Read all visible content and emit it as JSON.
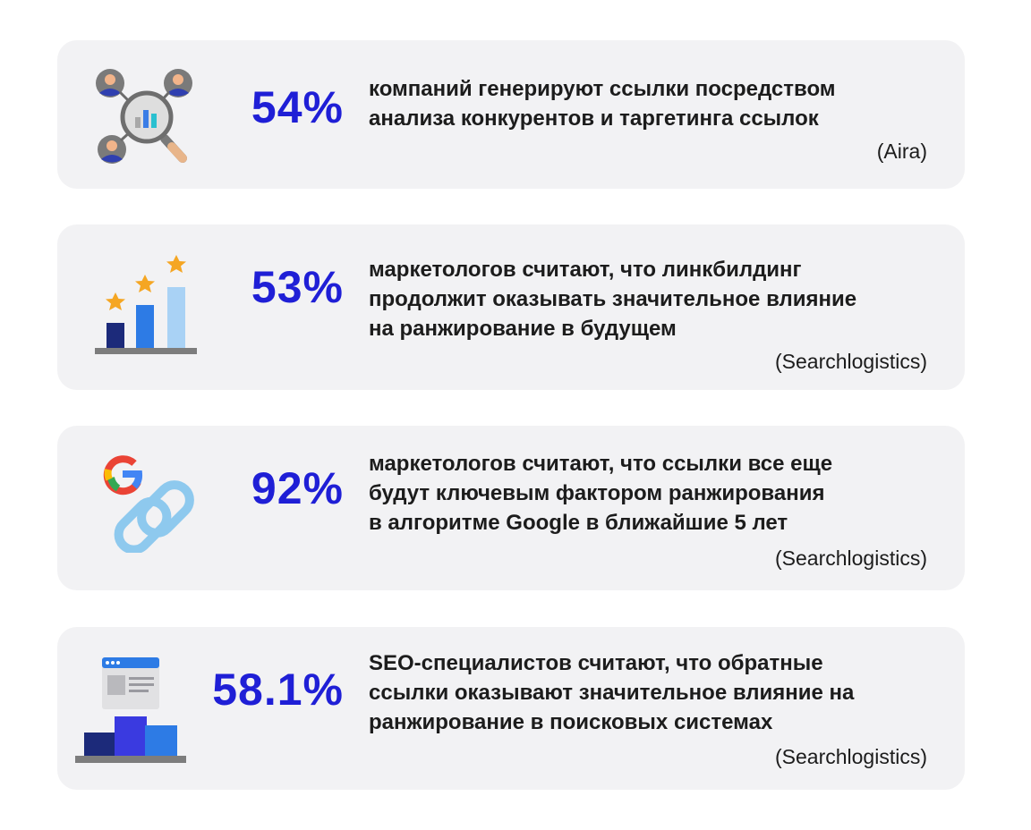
{
  "stats": [
    {
      "value": "54%",
      "text_lines": [
        "компаний генерируют ссылки посредством",
        "анализа конкурентов и таргетинга ссылок"
      ],
      "source": "(Aira)",
      "icon": "competitor-analysis-icon"
    },
    {
      "value": "53%",
      "text_lines": [
        "маркетологов считают, что линкбилдинг",
        "продолжит оказывать значительное влияние",
        "на ранжирование в будущем"
      ],
      "source": "(Searchlogistics)",
      "icon": "rating-growth-icon"
    },
    {
      "value": "92%",
      "text_lines": [
        "маркетологов считают, что ссылки все еще",
        "будут ключевым фактором ранжирования",
        "в алгоритме Google в ближайшие 5 лет"
      ],
      "source": "(Searchlogistics)",
      "icon": "google-link-icon"
    },
    {
      "value": "58.1%",
      "text_lines": [
        "SEO-специалистов считают, что обратные",
        "ссылки оказывают значительное влияние на",
        "ранжирование в поисковых системах"
      ],
      "source": "(Searchlogistics)",
      "icon": "browser-chart-icon"
    }
  ],
  "colors": {
    "accent": "#1f1fd6",
    "card_bg": "#f2f2f4",
    "text": "#1c1c1c"
  }
}
